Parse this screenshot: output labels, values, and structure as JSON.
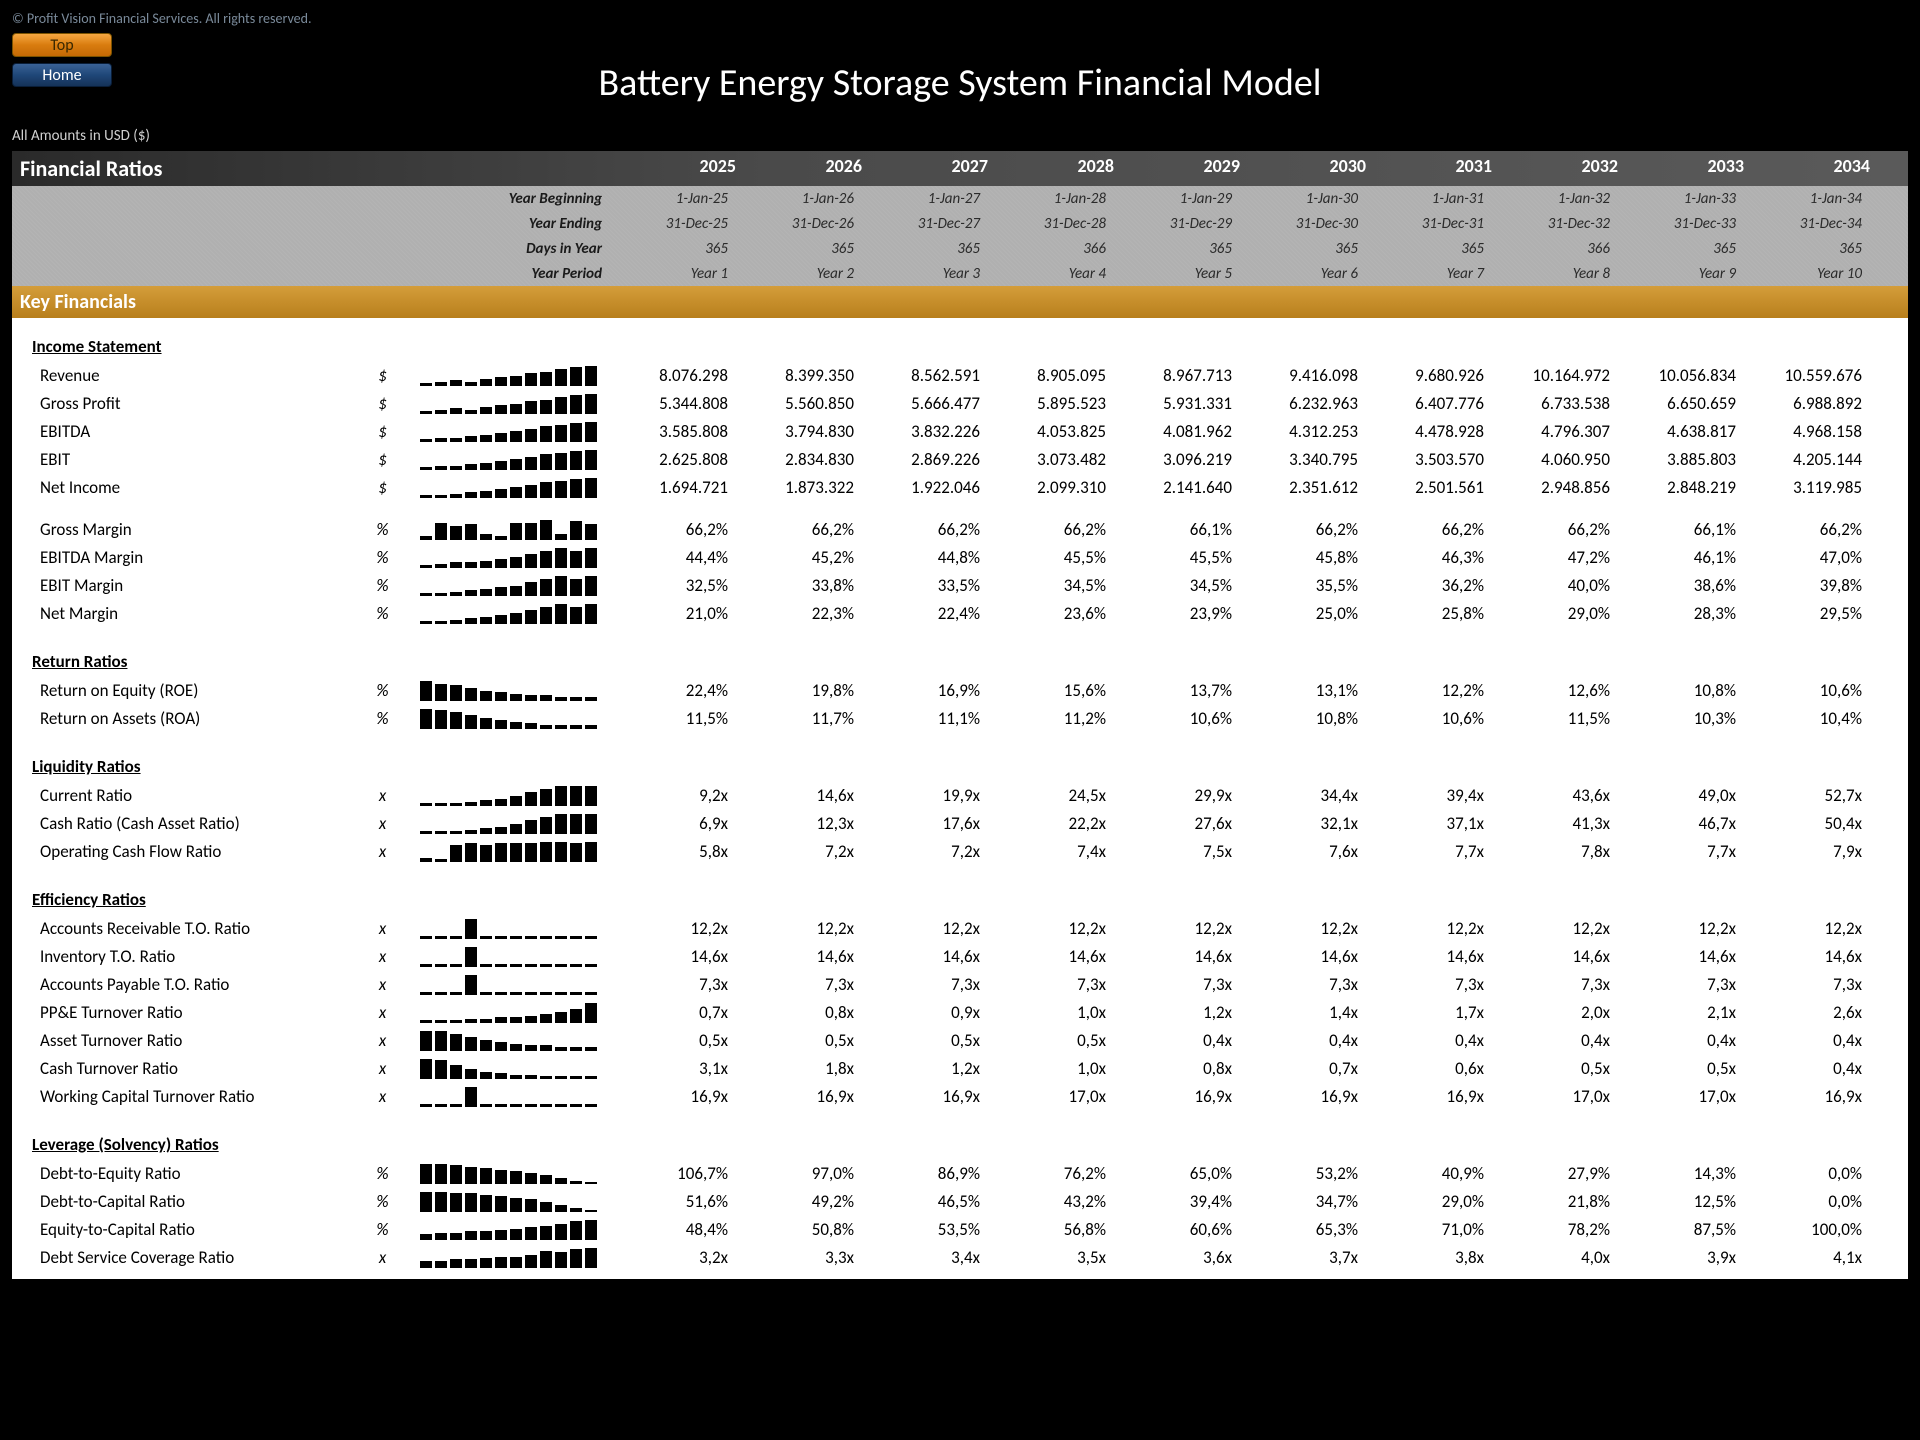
{
  "copyright": "© Profit Vision Financial Services. All rights reserved.",
  "buttons": {
    "top": "Top",
    "home": "Home"
  },
  "title": "Battery Energy Storage System Financial Model",
  "amounts_label": "All Amounts in  USD ($)",
  "section_title": "Financial Ratios",
  "years": [
    "2025",
    "2026",
    "2027",
    "2028",
    "2029",
    "2030",
    "2031",
    "2032",
    "2033",
    "2034"
  ],
  "meta": {
    "year_beginning": {
      "label": "Year Beginning",
      "values": [
        "1-Jan-25",
        "1-Jan-26",
        "1-Jan-27",
        "1-Jan-28",
        "1-Jan-29",
        "1-Jan-30",
        "1-Jan-31",
        "1-Jan-32",
        "1-Jan-33",
        "1-Jan-34"
      ]
    },
    "year_ending": {
      "label": "Year Ending",
      "values": [
        "31-Dec-25",
        "31-Dec-26",
        "31-Dec-27",
        "31-Dec-28",
        "31-Dec-29",
        "31-Dec-30",
        "31-Dec-31",
        "31-Dec-32",
        "31-Dec-33",
        "31-Dec-34"
      ]
    },
    "days_in_year": {
      "label": "Days in Year",
      "values": [
        "365",
        "365",
        "365",
        "366",
        "365",
        "365",
        "365",
        "366",
        "365",
        "365"
      ]
    },
    "year_period": {
      "label": "Year Period",
      "values": [
        "Year 1",
        "Year 2",
        "Year 3",
        "Year 4",
        "Year 5",
        "Year 6",
        "Year 7",
        "Year 8",
        "Year 9",
        "Year 10"
      ]
    }
  },
  "key_financials_title": "Key Financials",
  "groups": [
    {
      "title": "Income Statement",
      "rows": [
        {
          "label": "Revenue",
          "unit": "$",
          "spark": [
            2,
            3,
            4,
            3,
            5,
            6,
            7,
            9,
            10,
            12,
            13,
            14
          ],
          "values": [
            "8.076.298",
            "8.399.350",
            "8.562.591",
            "8.905.095",
            "8.967.713",
            "9.416.098",
            "9.680.926",
            "10.164.972",
            "10.056.834",
            "10.559.676"
          ]
        },
        {
          "label": "Gross Profit",
          "unit": "$",
          "spark": [
            2,
            3,
            4,
            3,
            5,
            6,
            7,
            9,
            10,
            12,
            13,
            14
          ],
          "values": [
            "5.344.808",
            "5.560.850",
            "5.666.477",
            "5.895.523",
            "5.931.331",
            "6.232.963",
            "6.407.776",
            "6.733.538",
            "6.650.659",
            "6.988.892"
          ]
        },
        {
          "label": "EBITDA",
          "unit": "$",
          "spark": [
            2,
            3,
            3,
            4,
            5,
            6,
            8,
            9,
            11,
            12,
            13,
            14
          ],
          "values": [
            "3.585.808",
            "3.794.830",
            "3.832.226",
            "4.053.825",
            "4.081.962",
            "4.312.253",
            "4.478.928",
            "4.796.307",
            "4.638.817",
            "4.968.158"
          ]
        },
        {
          "label": "EBIT",
          "unit": "$",
          "spark": [
            2,
            3,
            3,
            4,
            5,
            6,
            8,
            9,
            11,
            12,
            13,
            14
          ],
          "values": [
            "2.625.808",
            "2.834.830",
            "2.869.226",
            "3.073.482",
            "3.096.219",
            "3.340.795",
            "3.503.570",
            "4.060.950",
            "3.885.803",
            "4.205.144"
          ]
        },
        {
          "label": "Net Income",
          "unit": "$",
          "spark": [
            2,
            2,
            3,
            4,
            5,
            6,
            8,
            9,
            11,
            12,
            13,
            14
          ],
          "values": [
            "1.694.721",
            "1.873.322",
            "1.922.046",
            "2.099.310",
            "2.141.640",
            "2.351.612",
            "2.501.561",
            "2.948.856",
            "2.848.219",
            "3.119.985"
          ]
        }
      ]
    },
    {
      "spacer": true
    },
    {
      "rows": [
        {
          "label": "Gross Margin",
          "unit": "%",
          "spark": [
            3,
            12,
            10,
            11,
            4,
            3,
            12,
            12,
            14,
            4,
            13,
            11
          ],
          "values": [
            "66,2%",
            "66,2%",
            "66,2%",
            "66,2%",
            "66,1%",
            "66,2%",
            "66,2%",
            "66,2%",
            "66,1%",
            "66,2%"
          ]
        },
        {
          "label": "EBITDA Margin",
          "unit": "%",
          "spark": [
            2,
            3,
            4,
            4,
            5,
            6,
            8,
            10,
            12,
            14,
            12,
            14
          ],
          "values": [
            "44,4%",
            "45,2%",
            "44,8%",
            "45,5%",
            "45,5%",
            "45,8%",
            "46,3%",
            "47,2%",
            "46,1%",
            "47,0%"
          ]
        },
        {
          "label": "EBIT Margin",
          "unit": "%",
          "spark": [
            2,
            2,
            3,
            4,
            5,
            6,
            7,
            10,
            12,
            14,
            12,
            14
          ],
          "values": [
            "32,5%",
            "33,8%",
            "33,5%",
            "34,5%",
            "34,5%",
            "35,5%",
            "36,2%",
            "40,0%",
            "38,6%",
            "39,8%"
          ]
        },
        {
          "label": "Net Margin",
          "unit": "%",
          "spark": [
            2,
            2,
            3,
            4,
            5,
            6,
            8,
            10,
            12,
            14,
            12,
            14
          ],
          "values": [
            "21,0%",
            "22,3%",
            "22,4%",
            "23,6%",
            "23,9%",
            "25,0%",
            "25,8%",
            "29,0%",
            "28,3%",
            "29,5%"
          ]
        }
      ]
    },
    {
      "spacer": true
    },
    {
      "title": "Return Ratios",
      "rows": [
        {
          "label": "Return on Equity (ROE)",
          "unit": "%",
          "spark": [
            14,
            12,
            11,
            9,
            7,
            6,
            5,
            4,
            4,
            3,
            3,
            3
          ],
          "values": [
            "22,4%",
            "19,8%",
            "16,9%",
            "15,6%",
            "13,7%",
            "13,1%",
            "12,2%",
            "12,6%",
            "10,8%",
            "10,6%"
          ]
        },
        {
          "label": "Return on Assets (ROA)",
          "unit": "%",
          "spark": [
            14,
            13,
            12,
            10,
            8,
            6,
            5,
            4,
            3,
            3,
            3,
            3
          ],
          "values": [
            "11,5%",
            "11,7%",
            "11,1%",
            "11,2%",
            "10,6%",
            "10,8%",
            "10,6%",
            "11,5%",
            "10,3%",
            "10,4%"
          ]
        }
      ]
    },
    {
      "spacer": true
    },
    {
      "title": "Liquidity Ratios",
      "rows": [
        {
          "label": "Current Ratio",
          "unit": "x",
          "spark": [
            2,
            2,
            2,
            3,
            4,
            5,
            7,
            10,
            12,
            14,
            14,
            14
          ],
          "values": [
            "9,2x",
            "14,6x",
            "19,9x",
            "24,5x",
            "29,9x",
            "34,4x",
            "39,4x",
            "43,6x",
            "49,0x",
            "52,7x"
          ]
        },
        {
          "label": "Cash Ratio (Cash Asset Ratio)",
          "unit": "x",
          "spark": [
            2,
            2,
            2,
            3,
            4,
            5,
            7,
            10,
            12,
            14,
            14,
            14
          ],
          "values": [
            "6,9x",
            "12,3x",
            "17,6x",
            "22,2x",
            "27,6x",
            "32,1x",
            "37,1x",
            "41,3x",
            "46,7x",
            "50,4x"
          ]
        },
        {
          "label": "Operating Cash Flow Ratio",
          "unit": "x",
          "spark": [
            3,
            2,
            12,
            13,
            12,
            13,
            13,
            13,
            14,
            14,
            13,
            14
          ],
          "values": [
            "5,8x",
            "7,2x",
            "7,2x",
            "7,4x",
            "7,5x",
            "7,6x",
            "7,7x",
            "7,8x",
            "7,7x",
            "7,9x"
          ]
        }
      ]
    },
    {
      "spacer": true
    },
    {
      "title": "Efficiency Ratios",
      "rows": [
        {
          "label": "Accounts Receivable T.O. Ratio",
          "unit": "x",
          "spark": [
            2,
            2,
            2,
            14,
            2,
            2,
            2,
            2,
            2,
            2,
            2,
            2
          ],
          "values": [
            "12,2x",
            "12,2x",
            "12,2x",
            "12,2x",
            "12,2x",
            "12,2x",
            "12,2x",
            "12,2x",
            "12,2x",
            "12,2x"
          ]
        },
        {
          "label": "Inventory T.O. Ratio",
          "unit": "x",
          "spark": [
            2,
            2,
            2,
            14,
            2,
            2,
            2,
            2,
            2,
            2,
            2,
            2
          ],
          "values": [
            "14,6x",
            "14,6x",
            "14,6x",
            "14,6x",
            "14,6x",
            "14,6x",
            "14,6x",
            "14,6x",
            "14,6x",
            "14,6x"
          ]
        },
        {
          "label": "Accounts Payable T.O. Ratio",
          "unit": "x",
          "spark": [
            2,
            2,
            2,
            14,
            2,
            2,
            2,
            2,
            2,
            2,
            2,
            2
          ],
          "values": [
            "7,3x",
            "7,3x",
            "7,3x",
            "7,3x",
            "7,3x",
            "7,3x",
            "7,3x",
            "7,3x",
            "7,3x",
            "7,3x"
          ]
        },
        {
          "label": "PP&E Turnover Ratio",
          "unit": "x",
          "spark": [
            2,
            2,
            2,
            3,
            3,
            4,
            4,
            5,
            6,
            8,
            10,
            14
          ],
          "values": [
            "0,7x",
            "0,8x",
            "0,9x",
            "1,0x",
            "1,2x",
            "1,4x",
            "1,7x",
            "2,0x",
            "2,1x",
            "2,6x"
          ]
        },
        {
          "label": "Asset Turnover Ratio",
          "unit": "x",
          "spark": [
            14,
            14,
            12,
            10,
            8,
            6,
            5,
            4,
            4,
            3,
            3,
            3
          ],
          "values": [
            "0,5x",
            "0,5x",
            "0,5x",
            "0,5x",
            "0,4x",
            "0,4x",
            "0,4x",
            "0,4x",
            "0,4x",
            "0,4x"
          ]
        },
        {
          "label": "Cash Turnover Ratio",
          "unit": "x",
          "spark": [
            14,
            13,
            10,
            7,
            5,
            4,
            3,
            3,
            2,
            2,
            2,
            2
          ],
          "values": [
            "3,1x",
            "1,8x",
            "1,2x",
            "1,0x",
            "0,8x",
            "0,7x",
            "0,6x",
            "0,5x",
            "0,5x",
            "0,4x"
          ]
        },
        {
          "label": "Working Capital Turnover Ratio",
          "unit": "x",
          "spark": [
            2,
            2,
            2,
            14,
            2,
            2,
            2,
            2,
            2,
            2,
            2,
            2
          ],
          "values": [
            "16,9x",
            "16,9x",
            "16,9x",
            "17,0x",
            "16,9x",
            "16,9x",
            "16,9x",
            "17,0x",
            "17,0x",
            "16,9x"
          ]
        }
      ]
    },
    {
      "spacer": true
    },
    {
      "title": "Leverage (Solvency) Ratios",
      "rows": [
        {
          "label": "Debt-to-Equity Ratio",
          "unit": "%",
          "spark": [
            14,
            14,
            13,
            12,
            11,
            10,
            9,
            8,
            6,
            4,
            2,
            0
          ],
          "values": [
            "106,7%",
            "97,0%",
            "86,9%",
            "76,2%",
            "65,0%",
            "53,2%",
            "40,9%",
            "27,9%",
            "14,3%",
            "0,0%"
          ]
        },
        {
          "label": "Debt-to-Capital Ratio",
          "unit": "%",
          "spark": [
            14,
            14,
            13,
            13,
            12,
            11,
            10,
            9,
            7,
            5,
            3,
            0
          ],
          "values": [
            "51,6%",
            "49,2%",
            "46,5%",
            "43,2%",
            "39,4%",
            "34,7%",
            "29,0%",
            "21,8%",
            "12,5%",
            "0,0%"
          ]
        },
        {
          "label": "Equity-to-Capital Ratio",
          "unit": "%",
          "spark": [
            4,
            5,
            5,
            6,
            6,
            7,
            8,
            9,
            10,
            11,
            13,
            14
          ],
          "values": [
            "48,4%",
            "50,8%",
            "53,5%",
            "56,8%",
            "60,6%",
            "65,3%",
            "71,0%",
            "78,2%",
            "87,5%",
            "100,0%"
          ]
        },
        {
          "label": "Debt Service Coverage Ratio",
          "unit": "x",
          "spark": [
            5,
            5,
            6,
            6,
            7,
            8,
            8,
            9,
            12,
            11,
            13,
            14
          ],
          "values": [
            "3,2x",
            "3,3x",
            "3,4x",
            "3,5x",
            "3,6x",
            "3,7x",
            "3,8x",
            "4,0x",
            "3,9x",
            "4,1x"
          ]
        }
      ]
    }
  ]
}
